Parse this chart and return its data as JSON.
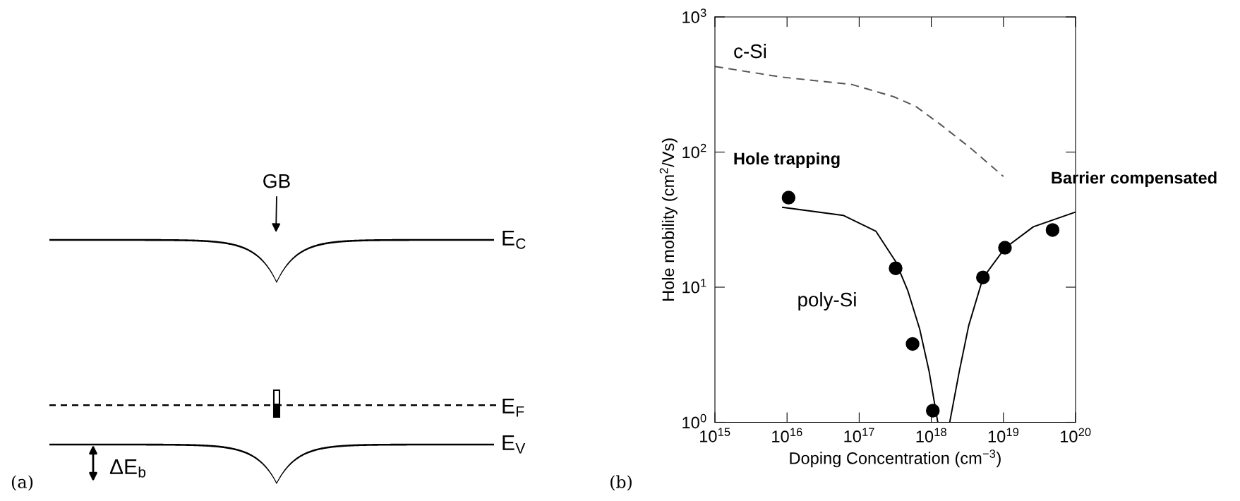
{
  "chart_data": [
    {
      "type": "other",
      "annotations": [
        "GB",
        "E$_{C}$",
        "E$_{F}$",
        "E$_{V}$",
        "ΔE$_{b}$",
        "(a)"
      ]
    },
    {
      "type": "line",
      "xlabel": "Doping Concentration (cm$^{−3}$)",
      "ylabel": "Hole mobility (cm$^{2}$/Vs)",
      "log": "xy",
      "xlim": [
        1000000000000000.0,
        1e+20
      ],
      "xticks": [
        {
          "value": 1000000000000000.0,
          "label": "10$^{15}$"
        },
        {
          "value": 1e+16,
          "label": "10$^{16}$"
        },
        {
          "value": 1e+17,
          "label": "10$^{17}$"
        },
        {
          "value": 1e+18,
          "label": "10$^{18}$"
        },
        {
          "value": 1e+19,
          "label": "10$^{19}$"
        },
        {
          "value": 1e+20,
          "label": "10$^{20}$"
        }
      ],
      "ylim": [
        1,
        1000
      ],
      "yticks": [
        {
          "value": 1,
          "label": "10$^{0}$"
        },
        {
          "value": 10,
          "label": "10$^{1}$"
        },
        {
          "value": 100,
          "label": "10$^{2}$"
        },
        {
          "value": 1000,
          "label": "10$^{3}$"
        }
      ],
      "grid": false,
      "legend": false,
      "series": [
        {
          "type": "line",
          "color": "#555555",
          "line_style": "dashed",
          "marker": "none",
          "x": [
            1000000000000000.0,
            8000000000000000.0,
            8e+16,
            3e+17,
            6e+17,
            1.3e+18,
            3.5e+18,
            1e+19
          ],
          "values": [
            430,
            360,
            316,
            257,
            219,
            162,
            107,
            66
          ]
        },
        {
          "type": "line",
          "color": "#000000",
          "line_style": "solid",
          "marker": "none",
          "x": [
            8700000000000000.0,
            6e+16,
            1.7e+17,
            3.2e+17,
            4.7e+17,
            6.9e+17,
            9.3e+17,
            1.23e+18
          ],
          "values": [
            39,
            34,
            26,
            15.5,
            9.5,
            4.9,
            2.4,
            1
          ]
        },
        {
          "type": "line",
          "color": "#000000",
          "line_style": "solid",
          "marker": "none",
          "x": [
            1.8e+18,
            2.45e+18,
            3.3e+18,
            5.2e+18,
            1.05e+19,
            2.6e+19,
            1e+20
          ],
          "values": [
            1,
            2.4,
            5.2,
            11.7,
            19.5,
            28,
            36
          ]
        },
        {
          "type": "scatter",
          "color": "#000000",
          "marker": "circle",
          "x": [
            1.05e+16,
            3.2e+17,
            5.5e+17,
            1.05e+18,
            5.2e+18,
            1.05e+19,
            4.8e+19
          ],
          "values": [
            46,
            13.8,
            3.8,
            1.22,
            11.8,
            19.6,
            26.5
          ]
        }
      ],
      "annotations": [
        "c-Si",
        "poly-Si",
        "Hole trapping",
        "Barrier compensated",
        "(b)"
      ]
    }
  ]
}
